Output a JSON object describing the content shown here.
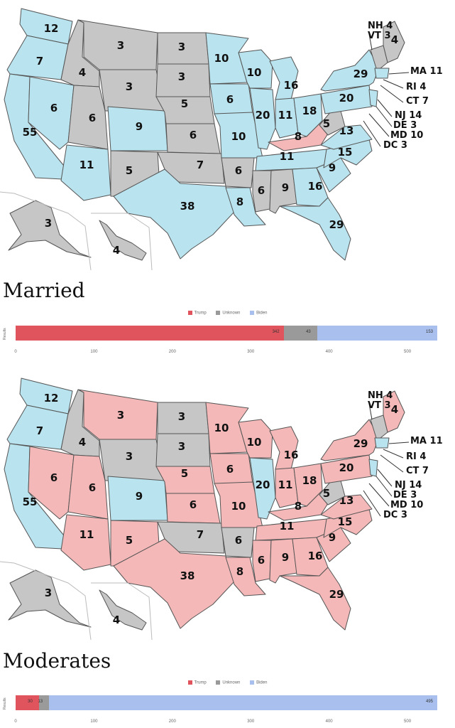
{
  "colors": {
    "trump": "#f5b8b8",
    "unknown": "#c6c6c6",
    "biden": "#b9e3ee",
    "bar_trump": "#e0555d",
    "bar_unknown": "#9a9a9a",
    "bar_biden": "#a9c0ee"
  },
  "map_a_states": {
    "WA": "biden",
    "OR": "biden",
    "CA": "biden",
    "NV": "biden",
    "ID": "unknown",
    "MT": "unknown",
    "WY": "unknown",
    "UT": "unknown",
    "CO": "biden",
    "AZ": "biden",
    "NM": "unknown",
    "ND": "unknown",
    "SD": "unknown",
    "NE": "unknown",
    "KS": "unknown",
    "OK": "unknown",
    "TX": "biden",
    "MN": "biden",
    "IA": "biden",
    "MO": "biden",
    "AR": "unknown",
    "LA": "biden",
    "WI": "biden",
    "IL": "biden",
    "MI": "biden",
    "IN": "biden",
    "OH": "biden",
    "KY": "trump",
    "TN": "biden",
    "MS": "unknown",
    "AL": "unknown",
    "GA": "biden",
    "FL": "biden",
    "SC": "biden",
    "NC": "biden",
    "VA": "biden",
    "WV": "unknown",
    "PA": "biden",
    "NY": "biden",
    "ME": "unknown",
    "NE_": "unknown",
    "AK": "unknown",
    "HI": "unknown",
    "NJ": "biden",
    "MA": "biden"
  },
  "map_b_states": {
    "WA": "biden",
    "OR": "biden",
    "CA": "biden",
    "NV": "trump",
    "ID": "unknown",
    "MT": "trump",
    "WY": "unknown",
    "UT": "trump",
    "CO": "biden",
    "AZ": "trump",
    "NM": "trump",
    "ND": "unknown",
    "SD": "unknown",
    "NE": "trump",
    "KS": "trump",
    "OK": "unknown",
    "TX": "trump",
    "MN": "trump",
    "IA": "trump",
    "MO": "trump",
    "AR": "unknown",
    "LA": "trump",
    "WI": "trump",
    "IL": "biden",
    "MI": "trump",
    "IN": "trump",
    "OH": "trump",
    "KY": "trump",
    "TN": "trump",
    "MS": "trump",
    "AL": "trump",
    "GA": "trump",
    "FL": "trump",
    "SC": "trump",
    "NC": "trump",
    "VA": "trump",
    "WV": "unknown",
    "PA": "trump",
    "NY": "trump",
    "ME": "trump",
    "NE_": "unknown",
    "AK": "unknown",
    "HI": "unknown",
    "NJ": "biden",
    "MA": "biden"
  },
  "ev": {
    "WA": "12",
    "OR": "7",
    "CA": "55",
    "NV": "6",
    "ID": "4",
    "MT": "3",
    "WY": "3",
    "UT": "6",
    "CO": "9",
    "AZ": "11",
    "NM": "5",
    "ND": "3",
    "SD": "3",
    "NE": "5",
    "KS": "6",
    "OK": "7",
    "TX": "38",
    "MN": "10",
    "IA": "6",
    "MO": "10",
    "AR": "6",
    "LA": "8",
    "WI": "10",
    "IL": "20",
    "MI": "16",
    "IN": "11",
    "OH": "18",
    "KY": "8",
    "TN": "11",
    "MS": "6",
    "AL": "9",
    "GA": "16",
    "FL": "29",
    "SC": "9",
    "NC": "15",
    "VA": "13",
    "WV": "5",
    "PA": "20",
    "NY": "29",
    "ME": "4",
    "AK": "3",
    "HI": "4"
  },
  "callouts": [
    "NH 4",
    "VT 3",
    "MA 11",
    "RI 4",
    "CT 7",
    "NJ 14",
    "DE 3",
    "MD 10",
    "DC 3"
  ],
  "section1": {
    "title": "Married",
    "legend": [
      {
        "key": "trump",
        "label": "Trump"
      },
      {
        "key": "unknown",
        "label": "Unknown"
      },
      {
        "key": "biden",
        "label": "Biden"
      }
    ],
    "ylabel": "Results",
    "bar": {
      "trump": 342,
      "unknown": 43,
      "biden": 153,
      "labels": {
        "trump": "342",
        "unknown": "43",
        "biden": "153"
      }
    },
    "axis": [
      "0",
      "100",
      "200",
      "300",
      "400",
      "500"
    ]
  },
  "section2": {
    "title": "Moderates",
    "legend": [
      {
        "key": "trump",
        "label": "Trump"
      },
      {
        "key": "unknown",
        "label": "Unknown"
      },
      {
        "key": "biden",
        "label": "Biden"
      }
    ],
    "ylabel": "Results",
    "bar": {
      "trump": 30,
      "unknown": 13,
      "biden": 495,
      "labels": {
        "trump": "30",
        "unknown": "13",
        "biden": "495"
      }
    },
    "axis": [
      "0",
      "100",
      "200",
      "300",
      "400",
      "500"
    ]
  }
}
